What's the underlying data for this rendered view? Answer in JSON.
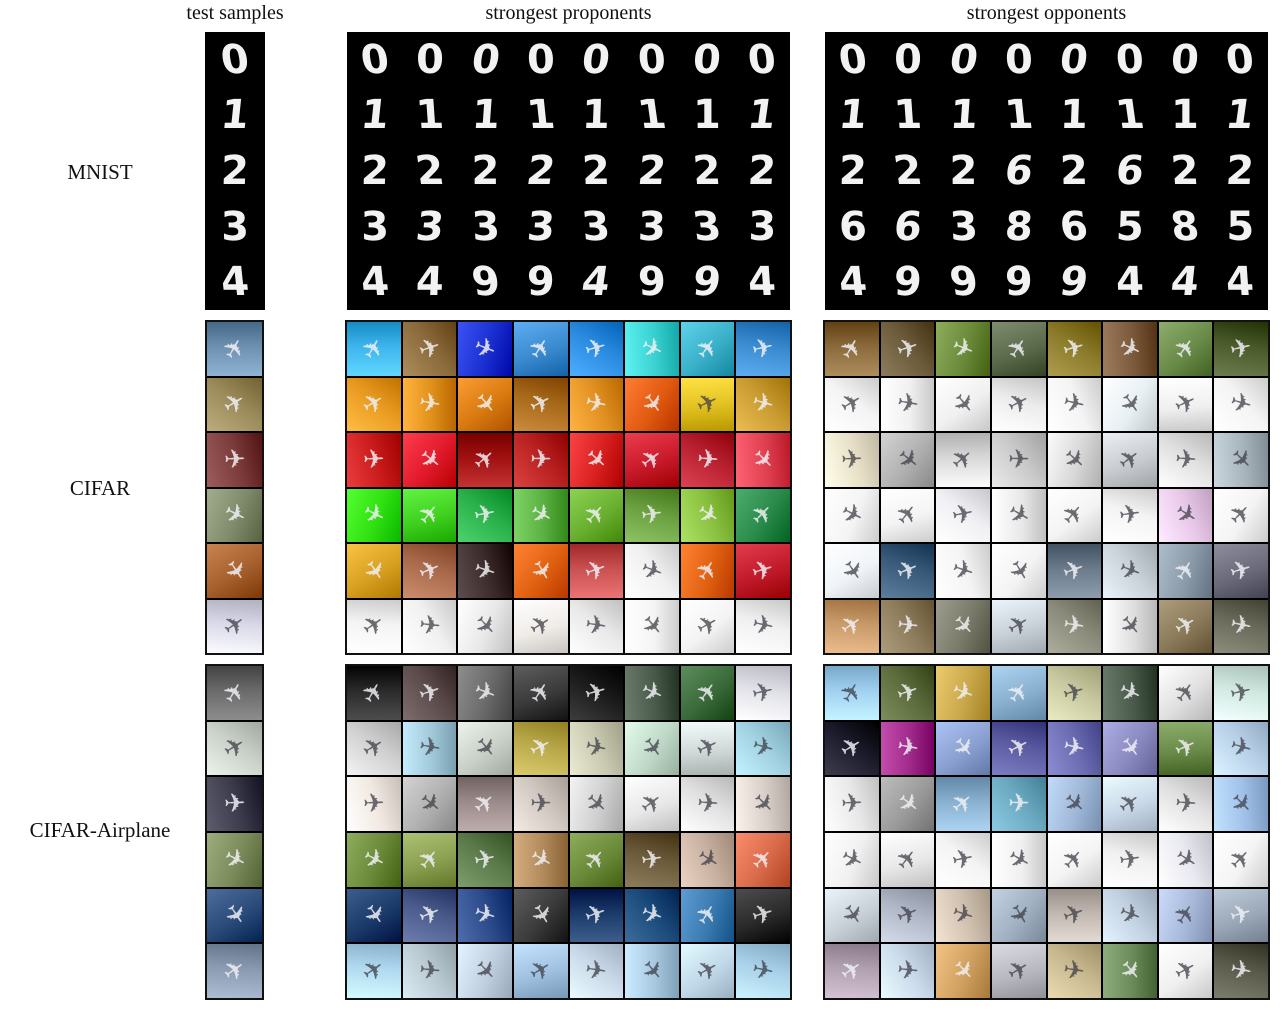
{
  "headers": {
    "test_samples": "test samples",
    "proponents": "strongest proponents",
    "opponents": "strongest opponents"
  },
  "row_labels": {
    "mnist": "MNIST",
    "cifar": "CIFAR",
    "cifar_airplane": "CIFAR-Airplane"
  },
  "mnist": {
    "test": [
      "0",
      "1",
      "2",
      "3",
      "4"
    ],
    "proponents": [
      [
        "0",
        "0",
        "0",
        "0",
        "0",
        "0",
        "0",
        "0"
      ],
      [
        "1",
        "1",
        "1",
        "1",
        "1",
        "1",
        "1",
        "1"
      ],
      [
        "2",
        "2",
        "2",
        "2",
        "2",
        "2",
        "2",
        "2"
      ],
      [
        "3",
        "3",
        "3",
        "3",
        "3",
        "3",
        "3",
        "3"
      ],
      [
        "4",
        "4",
        "9",
        "9",
        "4",
        "9",
        "9",
        "4"
      ]
    ],
    "opponents": [
      [
        "0",
        "0",
        "0",
        "0",
        "0",
        "0",
        "0",
        "0"
      ],
      [
        "1",
        "1",
        "1",
        "1",
        "1",
        "1",
        "1",
        "1"
      ],
      [
        "2",
        "2",
        "2",
        "6",
        "2",
        "6",
        "2",
        "2"
      ],
      [
        "6",
        "6",
        "3",
        "8",
        "6",
        "5",
        "8",
        "5"
      ],
      [
        "4",
        "9",
        "9",
        "9",
        "9",
        "4",
        "4",
        "4"
      ]
    ]
  },
  "cifar": {
    "test_colors": [
      "#6d8fb0",
      "#9a8a5a",
      "#7a3a3a",
      "#7f8a6a",
      "#a5602e",
      "#d8d8e8"
    ],
    "test_icons": [
      "ship-icon",
      "frog-icon",
      "car-icon",
      "bird-icon",
      "dog-icon",
      "bird-icon"
    ],
    "proponent_colors": [
      [
        "#3db4ec",
        "#8a6a3a",
        "#1a2fd0",
        "#3a8ad0",
        "#2a8ae0",
        "#3ad0d0",
        "#3ab0c8",
        "#3a8ad0"
      ],
      [
        "#e89a20",
        "#e0901a",
        "#d87a10",
        "#a86a1a",
        "#e09020",
        "#e05a10",
        "#e0c020",
        "#c89a30"
      ],
      [
        "#c81a1a",
        "#e01a2a",
        "#a01010",
        "#b82020",
        "#d82020",
        "#c81a2a",
        "#b82030",
        "#e04050"
      ],
      [
        "#30e010",
        "#40d020",
        "#2ab04a",
        "#5ab040",
        "#6ab030",
        "#6aa040",
        "#8ac040",
        "#2a8a4a"
      ],
      [
        "#d8a020",
        "#a86a4a",
        "#3a2a2a",
        "#e06010",
        "#c85050",
        "#f0f0f0",
        "#e06010",
        "#c01a2a"
      ],
      [
        "#f4f4f4",
        "#f0f0f0",
        "#e8e8e8",
        "#f0ece8",
        "#e8e8e8",
        "#f4f4f4",
        "#f4f4f4",
        "#f0f0f0"
      ]
    ],
    "opponent_colors": [
      [
        "#8a6a3a",
        "#6a5a3a",
        "#6a8a3a",
        "#5a6a4a",
        "#8a7a2a",
        "#7a5a3a",
        "#6a8a4a",
        "#4a5a2a"
      ],
      [
        "#f4f4f4",
        "#f0f0f0",
        "#f0f0f0",
        "#ececec",
        "#f4f4f4",
        "#e8f0f4",
        "#f0f0f0",
        "#f4f4f4"
      ],
      [
        "#e8e0c8",
        "#b0b0b0",
        "#d8d8d8",
        "#c8c8c8",
        "#d8d8d8",
        "#c8ccd0",
        "#e0e0e0",
        "#a8b4bc"
      ],
      [
        "#f4f4f4",
        "#f4f4f4",
        "#f0f0f4",
        "#e8e8e8",
        "#f4f4f4",
        "#f4f4f4",
        "#e8c8e8",
        "#f4f4f4"
      ],
      [
        "#f0f4f8",
        "#3a5a7a",
        "#f4f4f4",
        "#f4f4f4",
        "#6a7a8a",
        "#c8d0d8",
        "#8a9aa8",
        "#6a6a7a"
      ],
      [
        "#c89a6a",
        "#8a7a5a",
        "#7a7a6a",
        "#c8d0d8",
        "#8a8a7a",
        "#e0e0e0",
        "#8a7a5a",
        "#6a6a5a"
      ]
    ]
  },
  "cifar_airplane": {
    "test_colors": [
      "#6a6a6a",
      "#c8d0c8",
      "#3a3a4a",
      "#7a8a5a",
      "#2a4a7a",
      "#8a9ab0"
    ],
    "proponent_colors": [
      [
        "#2a2a2a",
        "#5a4a4a",
        "#6a6a6a",
        "#3a3a3a",
        "#1a1a1a",
        "#4a5a4a",
        "#3a6a3a",
        "#e0e0e8"
      ],
      [
        "#d0d0d0",
        "#a0c8d8",
        "#c8d0c8",
        "#b8a84a",
        "#c8c8b0",
        "#c0d8c8",
        "#d0d8d8",
        "#a0d0e0"
      ],
      [
        "#f0e8e0",
        "#b0b0b0",
        "#9a8a8a",
        "#d0c8c0",
        "#d0d0d0",
        "#e8e8e8",
        "#e0e0e0",
        "#d8d0c8"
      ],
      [
        "#6a8a3a",
        "#8aa050",
        "#5a7a4a",
        "#b08a5a",
        "#6a8a3a",
        "#6a5a3a",
        "#c8b0a0",
        "#d86a4a"
      ],
      [
        "#1a3a6a",
        "#4a5a8a",
        "#2a4a8a",
        "#3a3a3a",
        "#1a3a6a",
        "#1a4a7a",
        "#3a7ab0",
        "#2a2a2a"
      ],
      [
        "#b0d8f0",
        "#b8c8d0",
        "#c0d0e0",
        "#a0c0e0",
        "#c8d8e8",
        "#a8c8e0",
        "#c0d8e8",
        "#a8d0e8"
      ]
    ],
    "opponent_colors": [
      [
        "#a0d0f0",
        "#5a6a3a",
        "#c8a84a",
        "#8ab0d0",
        "#c8c8a0",
        "#4a5a4a",
        "#e0e0e0",
        "#d0e8e0"
      ],
      [
        "#1a1a2a",
        "#a02a8a",
        "#8aa0d0",
        "#5a5aa0",
        "#6a6ab0",
        "#8a8ac0",
        "#6a8a4a",
        "#b8d0e8"
      ],
      [
        "#e8e8e8",
        "#9a9a9a",
        "#8ab0d0",
        "#6aa8c0",
        "#a0b8d8",
        "#c8d8e8",
        "#e0e0e0",
        "#a0c0e8"
      ],
      [
        "#f0f0f0",
        "#e8e8e8",
        "#f4f4f4",
        "#f0f0f0",
        "#f4f4f4",
        "#f0f0f0",
        "#e8e8f0",
        "#f4f4f4"
      ],
      [
        "#c8d0d8",
        "#b0b8c8",
        "#d0c0b0",
        "#a0b0c0",
        "#c0b8b0",
        "#c0d0e0",
        "#a8b8d8",
        "#9aa8b8"
      ],
      [
        "#b0a0b0",
        "#c8d8e8",
        "#d0a060",
        "#b8b8c0",
        "#c8b890",
        "#6a8a5a",
        "#f0f0f0",
        "#5a5a4a"
      ]
    ]
  }
}
